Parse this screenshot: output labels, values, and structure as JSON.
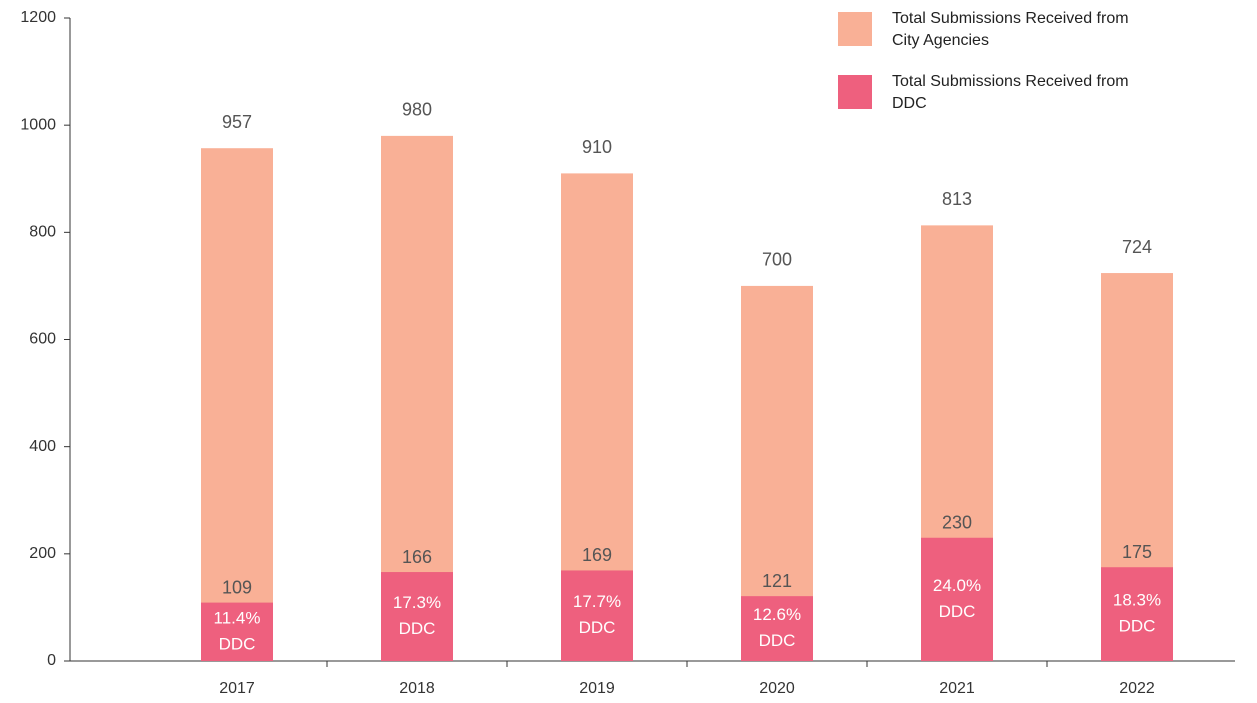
{
  "chart_data": {
    "type": "bar",
    "overlap": true,
    "categories": [
      "2017",
      "2018",
      "2019",
      "2020",
      "2021",
      "2022"
    ],
    "series": [
      {
        "name": "Total Submissions Received from City Agencies",
        "color": "#f9b096",
        "values": [
          957,
          980,
          910,
          700,
          813,
          724
        ]
      },
      {
        "name": "Total Submissions Received from DDC",
        "color": "#ee607e",
        "values": [
          109,
          166,
          169,
          121,
          230,
          175
        ],
        "share_labels": [
          "11.4%",
          "17.3%",
          "17.7%",
          "12.6%",
          "24.0%",
          "18.3%"
        ],
        "share_note": "DDC"
      }
    ],
    "ylim": [
      0,
      1200
    ],
    "yticks": [
      0,
      200,
      400,
      600,
      800,
      1000,
      1200
    ],
    "legend": "top-right"
  }
}
